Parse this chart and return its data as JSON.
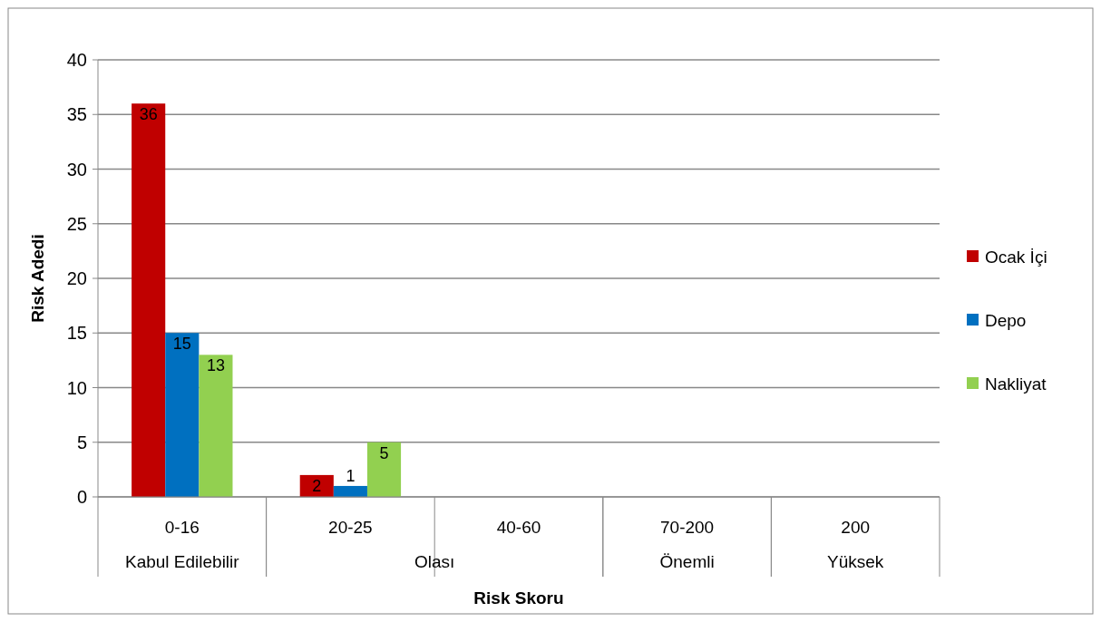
{
  "chart_data": {
    "type": "bar",
    "xlabel": "Risk Skoru",
    "ylabel": "Risk Adedi",
    "categories": [
      "0-16",
      "20-25",
      "40-60",
      "70-200",
      "200"
    ],
    "annotations": [
      "Kabul Edilebilir",
      "Olası",
      "Önemli",
      "Yüksek"
    ],
    "series": [
      {
        "name": "Ocak İçi",
        "color": "#c00000",
        "values": [
          36,
          2,
          null,
          null,
          null
        ]
      },
      {
        "name": "Depo",
        "color": "#0070c0",
        "values": [
          15,
          1,
          null,
          null,
          null
        ]
      },
      {
        "name": "Nakliyat",
        "color": "#92d050",
        "values": [
          13,
          5,
          null,
          null,
          null
        ]
      }
    ],
    "ylim": [
      0,
      40
    ],
    "yticks": [
      0,
      5,
      10,
      15,
      20,
      25,
      30,
      35,
      40
    ],
    "grid": "y",
    "legend": "right",
    "data_labels": true
  }
}
